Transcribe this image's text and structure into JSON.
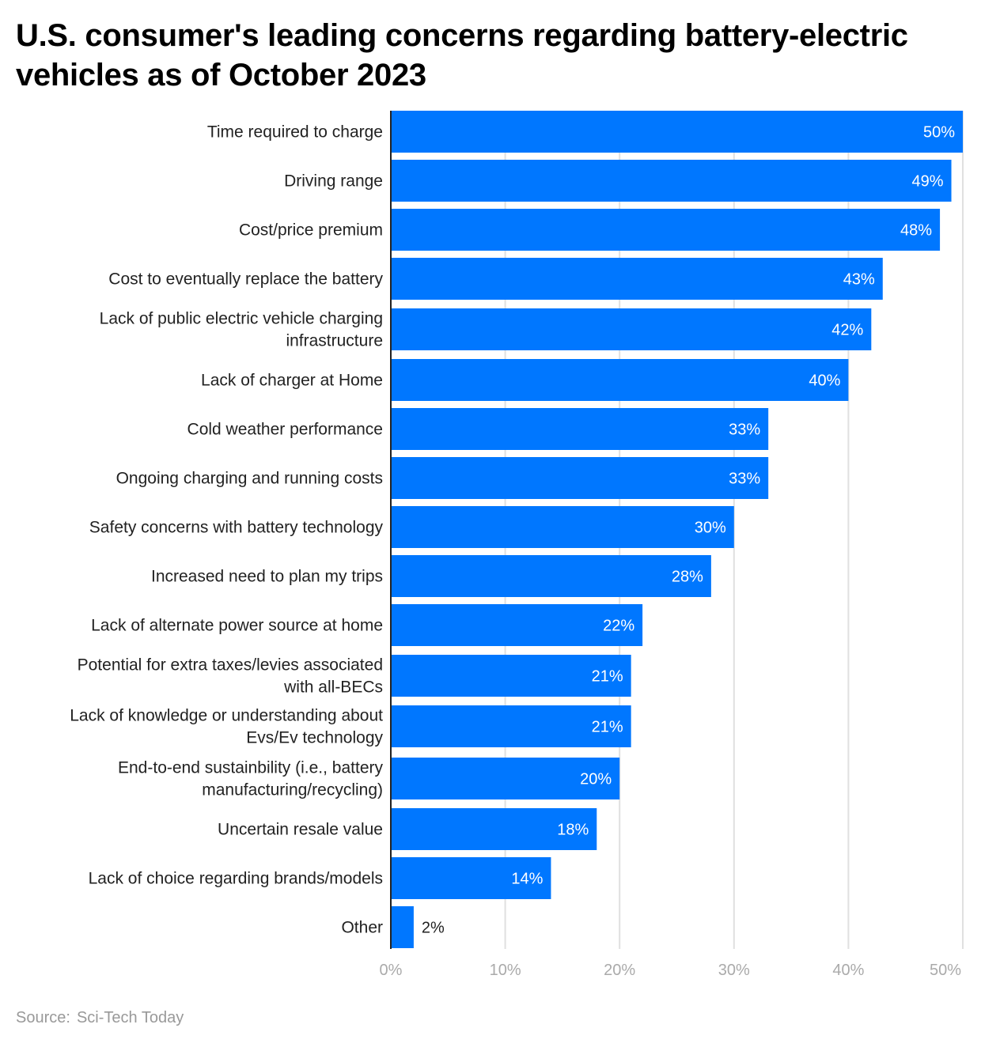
{
  "title": "U.S. consumer's leading concerns regarding battery-electric vehicles as of October 2023",
  "source": {
    "label": "Source:",
    "value": "Sci-Tech Today"
  },
  "chart_data": {
    "type": "bar",
    "orientation": "horizontal",
    "title": "U.S. consumer's leading concerns regarding battery-electric vehicles as of October 2023",
    "xlabel": "",
    "ylabel": "",
    "xlim": [
      0,
      50
    ],
    "x_ticks": [
      "0%",
      "10%",
      "20%",
      "30%",
      "40%",
      "50%"
    ],
    "grid": true,
    "bar_color": "#0077ff",
    "categories": [
      [
        "Time required to charge"
      ],
      [
        "Driving range"
      ],
      [
        "Cost/price premium"
      ],
      [
        "Cost to eventually replace the battery"
      ],
      [
        "Lack of public electric vehicle charging",
        "infrastructure"
      ],
      [
        "Lack of charger at Home"
      ],
      [
        "Cold weather performance"
      ],
      [
        "Ongoing charging and running costs"
      ],
      [
        "Safety concerns with battery technology"
      ],
      [
        "Increased need to plan my trips"
      ],
      [
        "Lack of alternate power source at home"
      ],
      [
        "Potential for extra taxes/levies associated",
        "with all-BECs"
      ],
      [
        "Lack of knowledge or understanding about",
        "Evs/Ev technology"
      ],
      [
        "End-to-end sustainbility (i.e., battery",
        "manufacturing/recycling)"
      ],
      [
        "Uncertain resale value"
      ],
      [
        "Lack of choice regarding brands/models"
      ],
      [
        "Other"
      ]
    ],
    "values": [
      50,
      49,
      48,
      43,
      42,
      40,
      33,
      33,
      30,
      28,
      22,
      21,
      21,
      20,
      18,
      14,
      2
    ],
    "data_labels": [
      "50%",
      "49%",
      "48%",
      "43%",
      "42%",
      "40%",
      "33%",
      "33%",
      "30%",
      "28%",
      "22%",
      "21%",
      "21%",
      "20%",
      "18%",
      "14%",
      "2%"
    ]
  }
}
